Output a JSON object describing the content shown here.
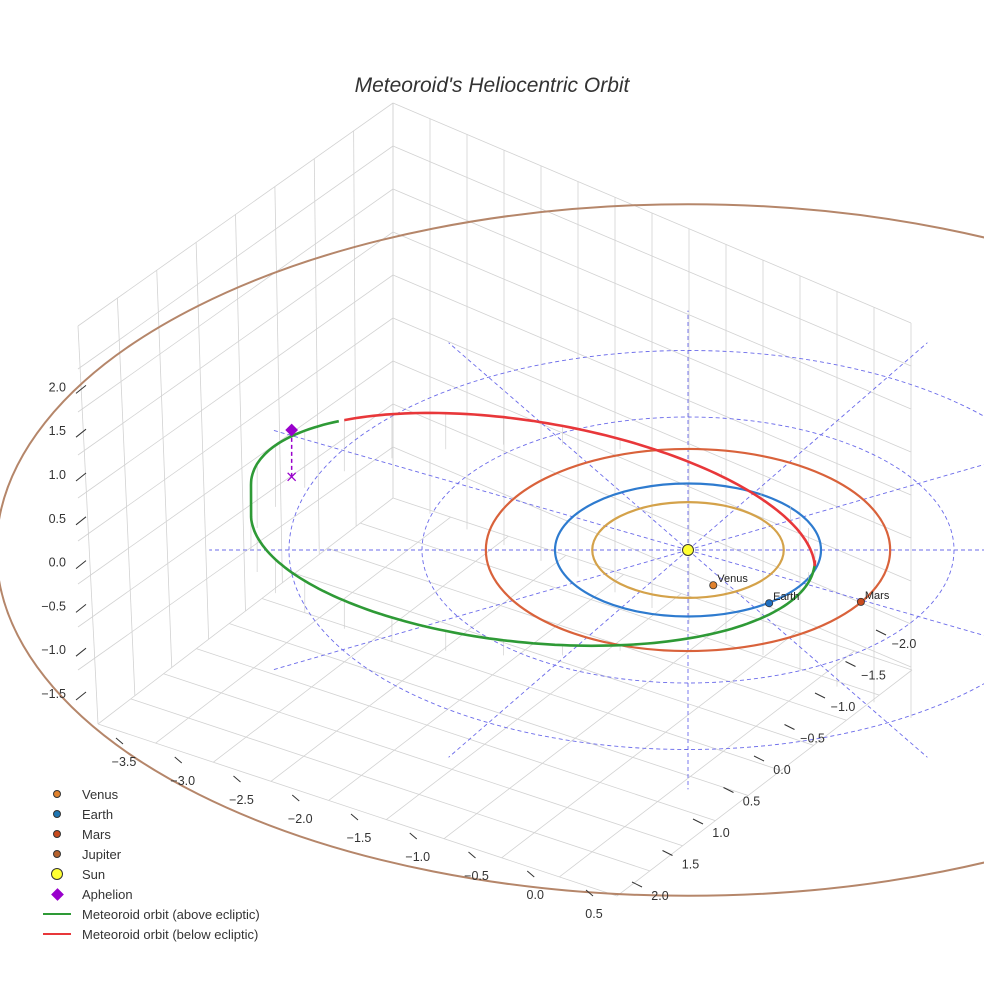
{
  "chart_data": {
    "type": "3d-line",
    "title": "Meteoroid's Heliocentric Orbit",
    "x_axis": {
      "ticks": [
        -3.5,
        -3.0,
        -2.5,
        -2.0,
        -1.5,
        -1.0,
        -0.5,
        0.0,
        0.5
      ],
      "tick_labels": [
        "−3.5",
        "−3.0",
        "−2.5",
        "−2.0",
        "−1.5",
        "−1.0",
        "−0.5",
        "0.0",
        "0.5"
      ]
    },
    "y_axis": {
      "ticks": [
        -2.0,
        -1.5,
        -1.0,
        -0.5,
        0.0,
        0.5,
        1.0,
        1.5,
        2.0
      ],
      "tick_labels": [
        "−2.0",
        "−1.5",
        "−1.0",
        "−0.5",
        "0.0",
        "0.5",
        "1.0",
        "1.5",
        "2.0"
      ]
    },
    "z_axis": {
      "ticks": [
        -1.5,
        -1.0,
        -0.5,
        0.0,
        0.5,
        1.0,
        1.5,
        2.0
      ],
      "tick_labels": [
        "−1.5",
        "−1.0",
        "−0.5",
        "0.0",
        "0.5",
        "1.0",
        "1.5",
        "2.0"
      ]
    },
    "planet_orbits": [
      {
        "name": "Venus",
        "radius_au": 0.72,
        "color": "#d4a24a"
      },
      {
        "name": "Earth",
        "radius_au": 1.0,
        "color": "#2e7bcf"
      },
      {
        "name": "Mars",
        "radius_au": 1.52,
        "color": "#d9623b"
      },
      {
        "name": "Jupiter",
        "radius_au": 5.2,
        "color": "#b5866a"
      }
    ],
    "planet_labels": [
      {
        "name": "Venus",
        "text": "Venus",
        "x": 0.19,
        "y": 0.53,
        "color": "#e0822e"
      },
      {
        "name": "Earth",
        "text": "Earth",
        "x": 0.61,
        "y": 0.8,
        "color": "#1f6fc0"
      },
      {
        "name": "Mars",
        "text": "Mars",
        "x": 1.3,
        "y": 0.78,
        "color": "#c84b1e"
      }
    ],
    "reference_circles_au": [
      1,
      2,
      3
    ],
    "reference_spokes_deg": [
      0,
      30,
      60,
      90,
      120,
      150,
      180,
      210,
      240,
      270,
      300,
      330
    ],
    "meteoroid_orbit": {
      "semi_major_axis_au": 2.12,
      "eccentricity": 0.55,
      "aphelion_au": 3.28,
      "above_ecliptic_color": "#2e9a36",
      "below_ecliptic_color": "#e8373a",
      "aphelion_height_au": 0.52
    },
    "sun": {
      "name": "Sun",
      "color": "#ffff33"
    },
    "aphelion_marker": {
      "name": "Aphelion",
      "color": "#9900cc"
    },
    "legend": [
      {
        "label": "Venus",
        "kind": "dot",
        "color": "#e0822e"
      },
      {
        "label": "Earth",
        "kind": "dot",
        "color": "#1f77b4"
      },
      {
        "label": "Mars",
        "kind": "dot",
        "color": "#c84b1e"
      },
      {
        "label": "Jupiter",
        "kind": "dot",
        "color": "#b5622e"
      },
      {
        "label": "Sun",
        "kind": "sun",
        "color": "#ffff33"
      },
      {
        "label": "Aphelion",
        "kind": "diamond",
        "color": "#9900cc"
      },
      {
        "label": "Meteoroid orbit (above ecliptic)",
        "kind": "line",
        "color": "#2e9a36"
      },
      {
        "label": "Meteoroid orbit (below ecliptic)",
        "kind": "line",
        "color": "#e8373a"
      }
    ]
  }
}
